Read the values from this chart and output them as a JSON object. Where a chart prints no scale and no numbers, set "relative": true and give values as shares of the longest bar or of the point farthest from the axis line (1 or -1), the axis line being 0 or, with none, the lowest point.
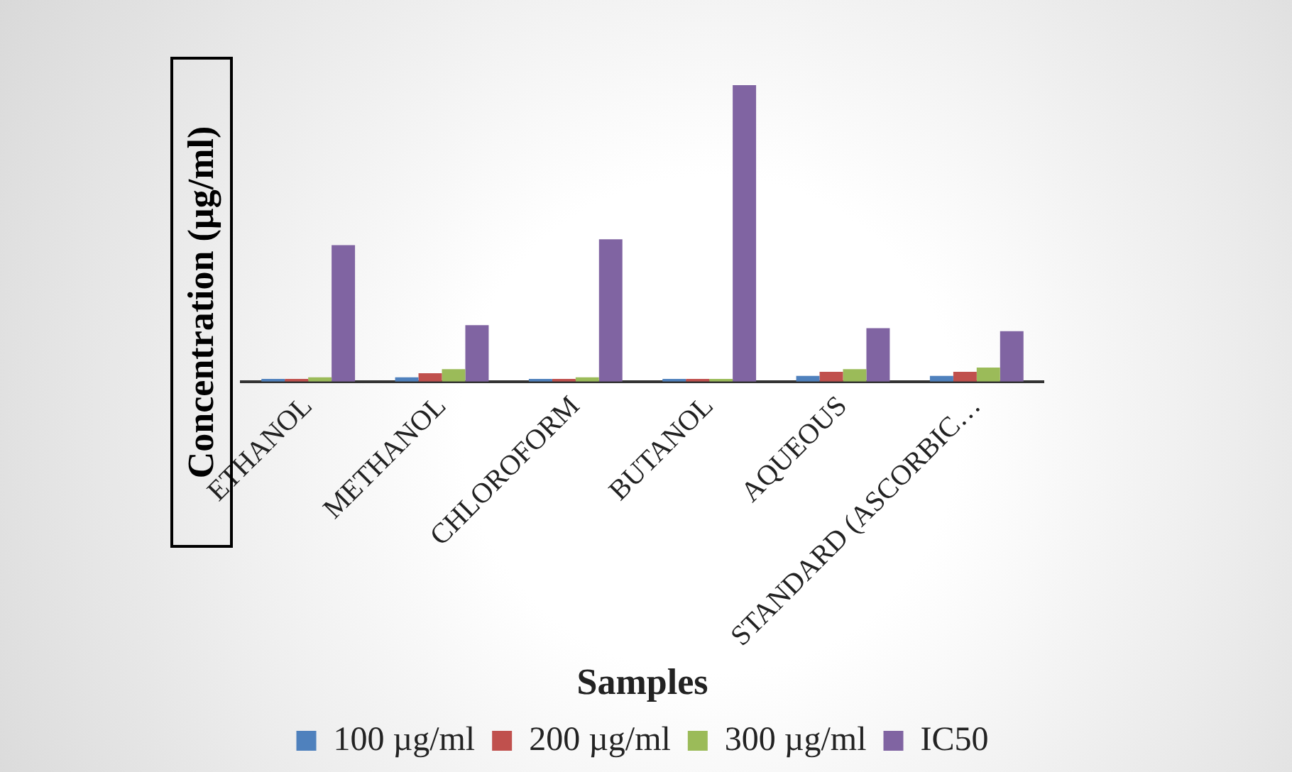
{
  "chart_data": {
    "type": "bar",
    "relative": true,
    "xlabel": "Samples",
    "ylabel": "Concentration (µg/ml)",
    "legend": "bottom",
    "grid": false,
    "categories": [
      "ETHANOL",
      "METHANOL",
      "CHLOROFORM",
      "BUTANOL",
      "AQUEOUS",
      "STANDARD (ASCORBIC…"
    ],
    "series": [
      {
        "name": "100 µg/ml",
        "color": "#4f81bd",
        "values": [
          0.009,
          0.014,
          0.009,
          0.009,
          0.019,
          0.019
        ]
      },
      {
        "name": "200 µg/ml",
        "color": "#c0504d",
        "values": [
          0.009,
          0.028,
          0.009,
          0.009,
          0.033,
          0.033
        ]
      },
      {
        "name": "300 µg/ml",
        "color": "#9bbb59",
        "values": [
          0.014,
          0.042,
          0.014,
          0.009,
          0.042,
          0.047
        ]
      },
      {
        "name": "IC50",
        "color": "#8064a2",
        "values": [
          0.46,
          0.19,
          0.48,
          1,
          0.18,
          0.17
        ]
      }
    ]
  }
}
